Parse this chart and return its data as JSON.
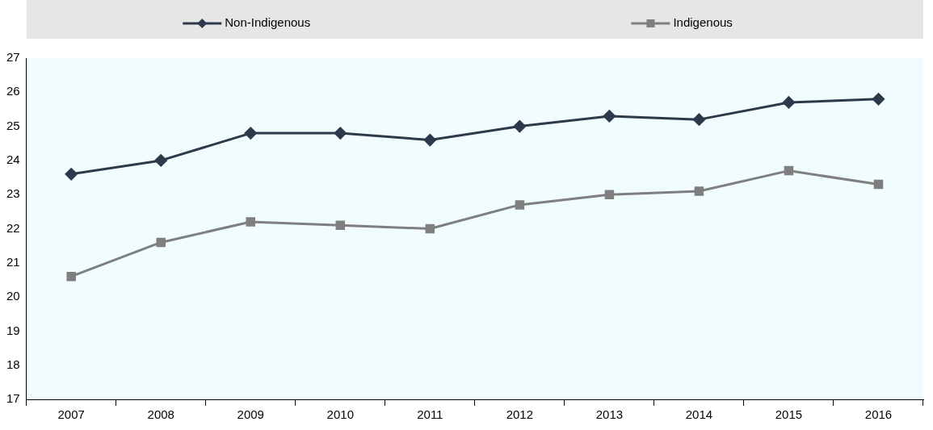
{
  "chart_data": {
    "type": "line",
    "categories": [
      "2007",
      "2008",
      "2009",
      "2010",
      "2011",
      "2012",
      "2013",
      "2014",
      "2015",
      "2016"
    ],
    "series": [
      {
        "name": "Non-Indigenous",
        "color": "#2e3a4c",
        "marker": "diamond",
        "values": [
          23.6,
          24.0,
          24.8,
          24.8,
          24.6,
          25.0,
          25.3,
          25.2,
          25.7,
          25.8
        ]
      },
      {
        "name": "Indigenous",
        "color": "#7f7f7f",
        "marker": "square",
        "values": [
          20.6,
          21.6,
          22.2,
          22.1,
          22.0,
          22.7,
          23.0,
          23.1,
          23.7,
          23.3
        ]
      }
    ],
    "ylim": [
      17,
      27
    ],
    "yticks": [
      17,
      18,
      19,
      20,
      21,
      22,
      23,
      24,
      25,
      26,
      27
    ],
    "grid": false,
    "legend": "top",
    "line_style": "solid"
  }
}
